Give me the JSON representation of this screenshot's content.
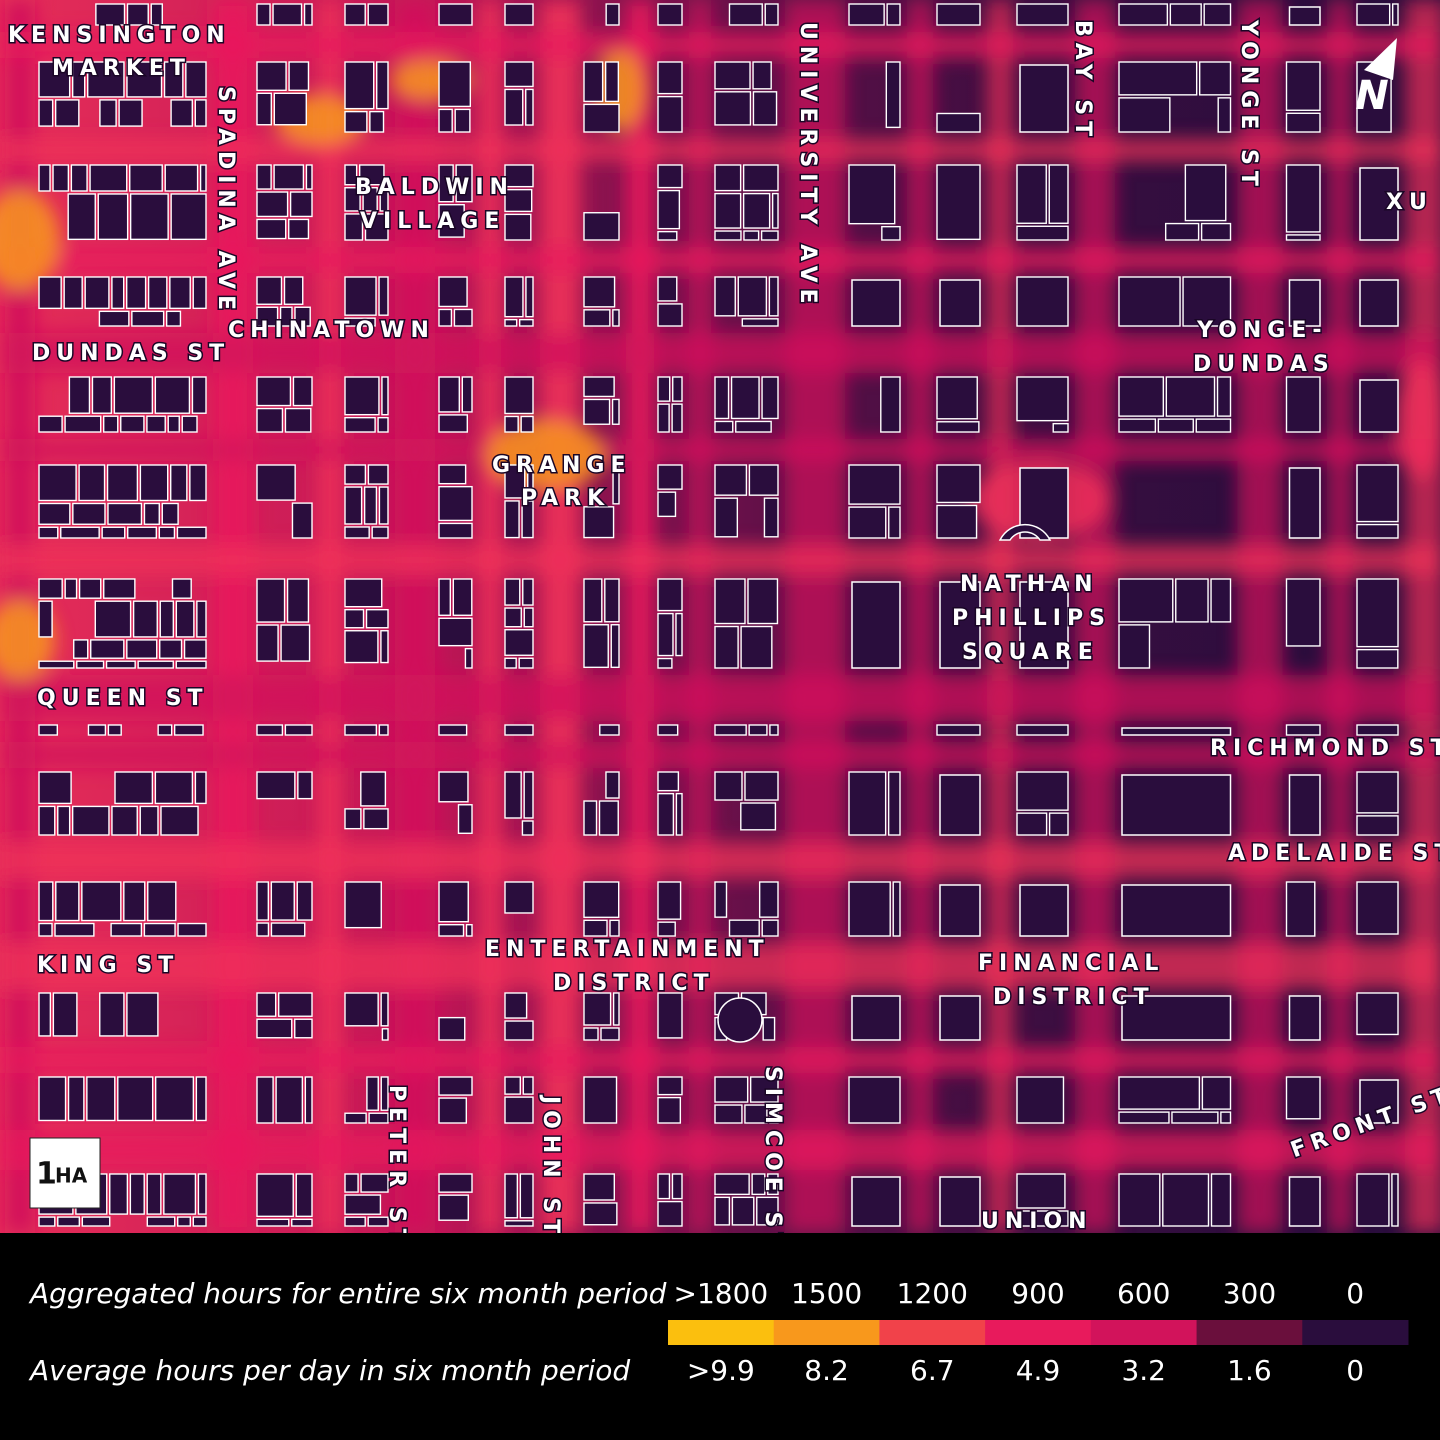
{
  "map": {
    "neighborhoods": {
      "kensington": [
        "KENSINGTON",
        "MARKET"
      ],
      "baldwin": [
        "BALDWIN",
        "VILLAGE"
      ],
      "chinatown": "CHINATOWN",
      "grange": [
        "GRANGE",
        "PARK"
      ],
      "yonge_dundas": [
        "YONGE-",
        "DUNDAS"
      ],
      "nathan": [
        "NATHAN",
        "PHILLIPS",
        "SQUARE"
      ],
      "entertainment": [
        "ENTERTAINMENT",
        "DISTRICT"
      ],
      "financial": [
        "FINANCIAL",
        "DISTRICT"
      ],
      "xu": "XU",
      "union": "UNION"
    },
    "streets": {
      "spadina": "SPADINA AVE",
      "university": "UNIVERSITY AVE",
      "bay": "BAY ST",
      "yonge": "YONGE ST",
      "dundas": "DUNDAS ST",
      "queen": "QUEEN ST",
      "richmond": "RICHMOND ST",
      "adelaide": "ADELAIDE ST",
      "king": "KING ST",
      "peter": "PETER ST",
      "john": "JOHN ST",
      "simcoe": "SIMCOE ST",
      "front": "FRONT ST"
    },
    "north": "N",
    "scale": {
      "number": "1",
      "unit": "HA"
    }
  },
  "legend": {
    "row1_caption": "Aggregated hours for entire six month period",
    "row2_caption": "Average hours per day in six month period",
    "items": [
      {
        "hours": ">1800",
        "per_day": ">9.9",
        "color": "#fbbf0e"
      },
      {
        "hours": "1500",
        "per_day": "8.2",
        "color": "#f8981c"
      },
      {
        "hours": "1200",
        "per_day": "6.7",
        "color": "#f1424a"
      },
      {
        "hours": "900",
        "per_day": "4.9",
        "color": "#e81a5c"
      },
      {
        "hours": "600",
        "per_day": "3.2",
        "color": "#d2135b"
      },
      {
        "hours": "300",
        "per_day": "1.6",
        "color": "#6a0f3c"
      },
      {
        "hours": "0",
        "per_day": "0",
        "color": "#2a0d3d"
      }
    ]
  }
}
